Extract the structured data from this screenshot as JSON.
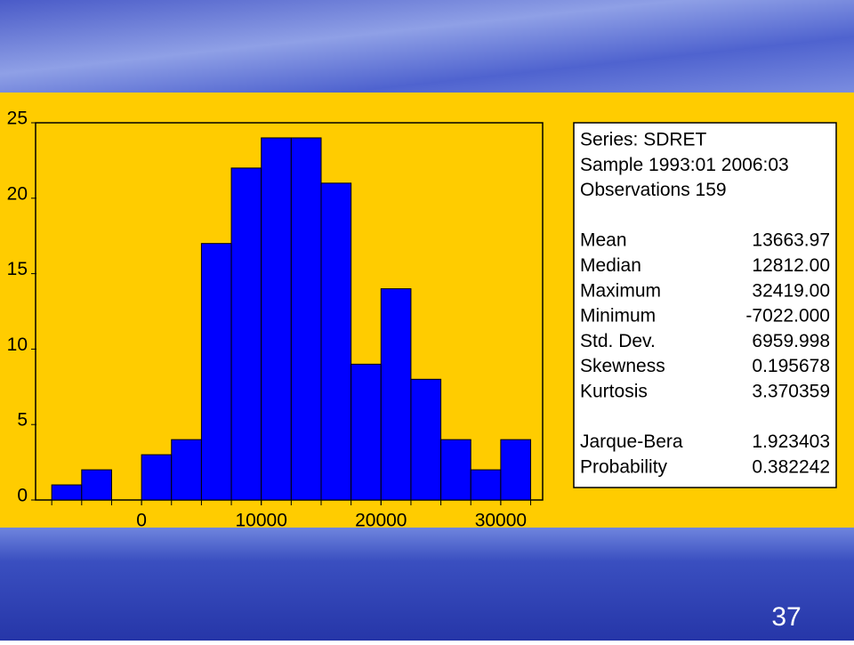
{
  "chart_data": {
    "type": "histogram",
    "color": "#0000ff",
    "bins": [
      -7500,
      -5000,
      -2500,
      0,
      2500,
      5000,
      7500,
      10000,
      12500,
      15000,
      17500,
      20000,
      22500,
      25000,
      27500,
      30000,
      32500
    ],
    "values": [
      1,
      2,
      0,
      3,
      4,
      17,
      22,
      24,
      24,
      21,
      9,
      14,
      8,
      4,
      2,
      4
    ],
    "xlim": [
      -8850,
      33500
    ],
    "ylim": [
      0,
      25
    ],
    "xticks": [
      0,
      10000,
      20000,
      30000
    ],
    "yticks": [
      0,
      5,
      10,
      15,
      20,
      25
    ],
    "stats_box": {
      "header": [
        "Series: SDRET",
        "Sample 1993:01 2006:03",
        "Observations 159"
      ],
      "moments": [
        [
          "Mean",
          "13663.97"
        ],
        [
          "Median",
          "12812.00"
        ],
        [
          "Maximum",
          "32419.00"
        ],
        [
          "Minimum",
          "-7022.000"
        ],
        [
          "Std. Dev.",
          "6959.998"
        ],
        [
          "Skewness",
          "0.195678"
        ],
        [
          "Kurtosis",
          "3.370359"
        ]
      ],
      "tests": [
        [
          "Jarque-Bera",
          "1.923403"
        ],
        [
          "Probability",
          "0.382242"
        ]
      ]
    }
  },
  "slide": {
    "page_number": "37"
  }
}
